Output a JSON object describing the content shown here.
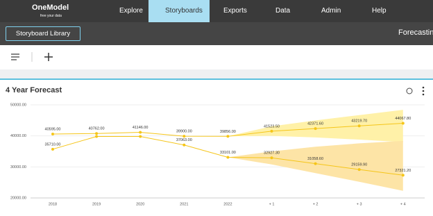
{
  "nav": {
    "logo": "OneModel",
    "tagline": "free your data",
    "items": [
      "Explore",
      "Storyboards",
      "Exports",
      "Data",
      "Admin",
      "Help"
    ]
  },
  "subbar": {
    "button": "Storyboard Library",
    "title": "Forecastin"
  },
  "card": {
    "title": "4 Year Forecast"
  },
  "chart_data": {
    "type": "line",
    "categories": [
      "2018",
      "2019",
      "2020",
      "2021",
      "2022",
      "+ 1",
      "+ 2",
      "+ 3",
      "+ 4"
    ],
    "ylim": [
      20000,
      50000
    ],
    "yticks": [
      {
        "value": 20000,
        "label": "20000.00"
      },
      {
        "value": 30000,
        "label": "30000.00"
      },
      {
        "value": 40000,
        "label": "40000.00"
      },
      {
        "value": 50000,
        "label": "50000.00"
      }
    ],
    "grid": true,
    "series": [
      {
        "color": "#f5c518",
        "values": [
          40595,
          40762,
          41146,
          39900,
          39856,
          41523.5,
          42371.6,
          43219.7,
          44067.8
        ],
        "value_labels": [
          "40595.00",
          "40762.00",
          "41146.00",
          "39900.00",
          "39856.00",
          "41523.50",
          "42371.60",
          "43219.70",
          "44067.80"
        ]
      },
      {
        "color": "#f5c518",
        "values": [
          35710,
          39800,
          39800,
          37063,
          33101,
          32927.3,
          31058.6,
          29159.9,
          27321.2
        ],
        "value_labels": [
          "35710.00",
          null,
          null,
          "37063.00",
          "33101.00",
          "32927.30",
          "31058.60",
          "29159.90",
          "27321.20"
        ]
      }
    ],
    "bands": [
      {
        "color": "#fff1a8",
        "upper": [
          null,
          null,
          null,
          null,
          39856,
          43100,
          45000,
          46700,
          48400
        ],
        "lower": [
          null,
          null,
          null,
          null,
          39856,
          40000,
          39500,
          38800,
          38000
        ]
      },
      {
        "color": "#fde4a6",
        "upper": [
          null,
          null,
          null,
          null,
          33101,
          35000,
          36500,
          37600,
          38400
        ],
        "lower": [
          null,
          null,
          null,
          null,
          33101,
          30800,
          28000,
          25200,
          22300
        ]
      }
    ]
  }
}
